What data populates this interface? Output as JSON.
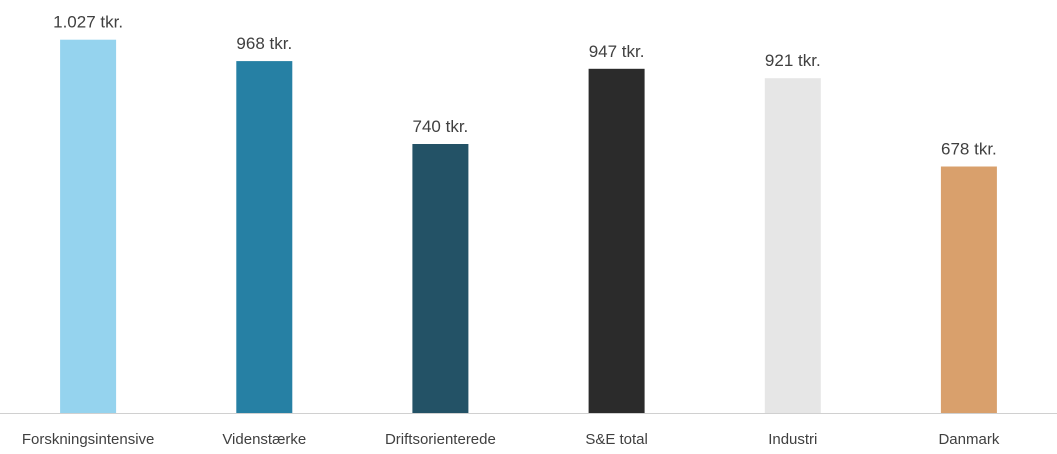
{
  "chart_data": {
    "type": "bar",
    "categories": [
      "Forskningsintensive",
      "Videnstærke",
      "Driftsorienterede",
      "S&E total",
      "Industri",
      "Danmark"
    ],
    "values": [
      1027,
      968,
      740,
      947,
      921,
      678
    ],
    "data_labels": [
      "1.027 tkr.",
      "968 tkr.",
      "740 tkr.",
      "947 tkr.",
      "921 tkr.",
      "678 tkr."
    ],
    "colors": [
      "#95D3EE",
      "#2680A4",
      "#235266",
      "#2B2B2B",
      "#E6E6E6",
      "#D9A06C"
    ],
    "ylim": [
      0,
      1100
    ],
    "grid": false,
    "legend": "none"
  }
}
